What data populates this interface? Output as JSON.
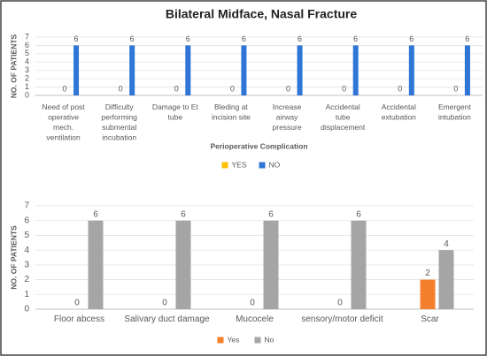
{
  "chart_data": [
    {
      "type": "bar",
      "title": "Bilateral Midface, Nasal Fracture",
      "y_label": "NO. OF PATIENTS",
      "x_label": "Perioperative Complication",
      "categories": [
        "Need of post operative mech. ventilation",
        "Difficulty performing submental incubation",
        "Damage to Et tube",
        "Bleding at incision site",
        "Increase airway pressure",
        "Accidental tube displacement",
        "Accidental extubation",
        "Emergent intubation"
      ],
      "series": [
        {
          "name": "YES",
          "color": "#ffc000",
          "values": [
            0,
            0,
            0,
            0,
            0,
            0,
            0,
            0
          ]
        },
        {
          "name": "NO",
          "color": "#2e75d6",
          "values": [
            6,
            6,
            6,
            6,
            6,
            6,
            6,
            6
          ]
        }
      ],
      "ylim": [
        0,
        7
      ],
      "yticks": [
        0,
        1,
        2,
        3,
        4,
        5,
        6,
        7
      ],
      "grid": true,
      "legend": "bottom"
    },
    {
      "type": "bar",
      "y_label": "NO. OF PATIENTS",
      "categories": [
        "Floor abcess",
        "Salivary duct damage",
        "Mucocele",
        "sensory/motor deficit",
        "Scar"
      ],
      "series": [
        {
          "name": "Yes",
          "color": "#f4802e",
          "values": [
            0,
            0,
            0,
            0,
            2
          ]
        },
        {
          "name": "No",
          "color": "#a5a5a5",
          "values": [
            6,
            6,
            6,
            6,
            4
          ]
        }
      ],
      "ylim": [
        0,
        7
      ],
      "yticks": [
        0,
        1,
        2,
        3,
        4,
        5,
        6,
        7
      ],
      "grid": true,
      "legend": "bottom"
    }
  ]
}
